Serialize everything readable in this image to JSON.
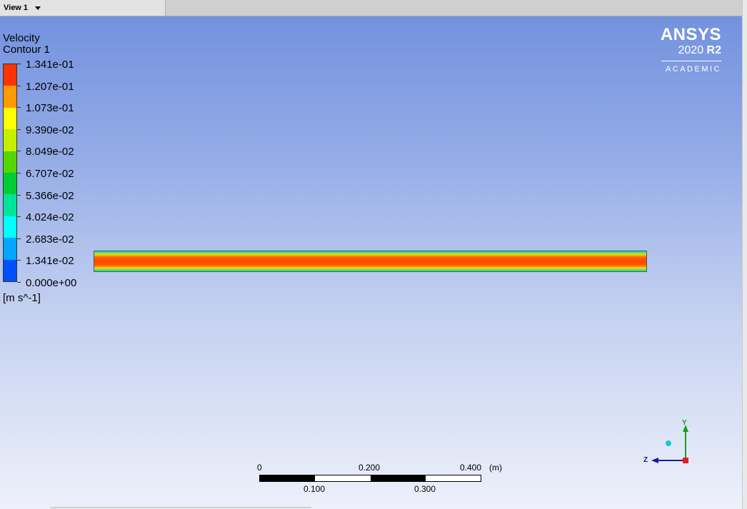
{
  "view_tab": {
    "label": "View 1",
    "dropdown_icon": "chevron-down-icon"
  },
  "legend": {
    "title": "Velocity",
    "subtitle": "Contour 1",
    "units": "[m s^-1]",
    "levels": [
      "1.341e-01",
      "1.207e-01",
      "1.073e-01",
      "9.390e-02",
      "8.049e-02",
      "6.707e-02",
      "5.366e-02",
      "4.024e-02",
      "2.683e-02",
      "1.341e-02",
      "0.000e+00"
    ],
    "band_colors": [
      "#ff3300",
      "#ff9900",
      "#ffff00",
      "#c4f000",
      "#54d600",
      "#00cc33",
      "#00e39b",
      "#00ffff",
      "#00a6ff",
      "#0050ff"
    ]
  },
  "logo": {
    "name": "ANSYS",
    "year": "2020",
    "release": "R2",
    "edition": "ACADEMIC"
  },
  "scale_bar": {
    "top_labels": [
      "0",
      "0.200",
      "0.400"
    ],
    "bottom_labels": [
      "0.100",
      "0.300"
    ],
    "unit": "(m)"
  },
  "triad": {
    "y_label": "Y",
    "z_label": "Z"
  },
  "colors": {
    "viewport_top": "#6f8fde",
    "viewport_bottom": "#eef1fb",
    "contour_core": "#ff4800"
  }
}
